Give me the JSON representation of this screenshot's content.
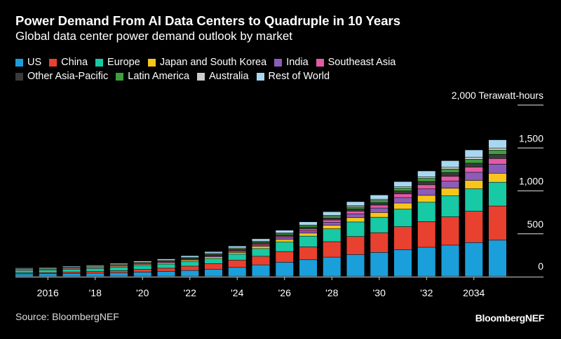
{
  "chart_data": {
    "type": "bar",
    "stacked": true,
    "title": "Power Demand From AI Data Centers to Quadruple in 10 Years",
    "subtitle": "Global data center power demand outlook by market",
    "ylabel": "",
    "yunit": "Terawatt-hours",
    "ylim": [
      0,
      2000
    ],
    "yticks": [
      0,
      500,
      1000,
      1500,
      2000
    ],
    "ytick_labels": [
      "0",
      "500",
      "1,000",
      "1,500",
      "2,000 Terawatt-hours"
    ],
    "categories": [
      2015,
      2016,
      2017,
      2018,
      2019,
      2020,
      2021,
      2022,
      2023,
      2024,
      2025,
      2026,
      2027,
      2028,
      2029,
      2030,
      2031,
      2032,
      2033,
      2034,
      2035
    ],
    "xtick_labels": [
      {
        "year": 2016,
        "label": "2016"
      },
      {
        "year": 2018,
        "label": "'18"
      },
      {
        "year": 2020,
        "label": "'20"
      },
      {
        "year": 2022,
        "label": "'22"
      },
      {
        "year": 2024,
        "label": "'24"
      },
      {
        "year": 2026,
        "label": "'26"
      },
      {
        "year": 2028,
        "label": "'28"
      },
      {
        "year": 2030,
        "label": "'30"
      },
      {
        "year": 2032,
        "label": "'32"
      },
      {
        "year": 2034,
        "label": "2034"
      }
    ],
    "legend_placement": "top-left",
    "grid": true,
    "series": [
      {
        "name": "US",
        "color": "#1a9fdb",
        "values": [
          30,
          32,
          35,
          38,
          43,
          50,
          58,
          70,
          85,
          105,
          135,
          165,
          195,
          225,
          255,
          280,
          310,
          340,
          365,
          395,
          423
        ]
      },
      {
        "name": "China",
        "color": "#e8412f",
        "values": [
          12,
          13,
          16,
          19,
          24,
          32,
          38,
          50,
          65,
          85,
          100,
          125,
          150,
          180,
          210,
          230,
          270,
          300,
          330,
          365,
          398
        ]
      },
      {
        "name": "Europe",
        "color": "#17c9a5",
        "values": [
          28,
          30,
          33,
          36,
          40,
          45,
          48,
          53,
          60,
          70,
          90,
          110,
          125,
          150,
          170,
          180,
          205,
          225,
          245,
          262,
          277
        ]
      },
      {
        "name": "Japan and South Korea",
        "color": "#f7c51c",
        "values": [
          8,
          8,
          9,
          10,
          12,
          13,
          14,
          16,
          18,
          20,
          25,
          30,
          35,
          42,
          50,
          55,
          70,
          80,
          88,
          97,
          105
        ]
      },
      {
        "name": "India",
        "color": "#8c5cb8",
        "values": [
          2,
          2,
          3,
          3,
          4,
          5,
          6,
          7,
          9,
          12,
          15,
          20,
          27,
          35,
          45,
          52,
          65,
          75,
          85,
          95,
          106
        ]
      },
      {
        "name": "Southeast Asia",
        "color": "#e35aa4",
        "values": [
          2,
          2,
          3,
          3,
          4,
          5,
          6,
          7,
          9,
          11,
          13,
          17,
          21,
          26,
          31,
          34,
          42,
          48,
          54,
          60,
          65
        ]
      },
      {
        "name": "Other Asia-Pacific",
        "color": "#3a3a3a",
        "values": [
          4,
          4,
          5,
          5,
          6,
          7,
          8,
          9,
          10,
          12,
          14,
          17,
          20,
          23,
          27,
          29,
          35,
          39,
          43,
          46,
          49
        ]
      },
      {
        "name": "Latin America",
        "color": "#3f9d40",
        "values": [
          3,
          3,
          4,
          4,
          5,
          6,
          7,
          8,
          9,
          11,
          13,
          15,
          18,
          21,
          25,
          27,
          33,
          37,
          42,
          46,
          49
        ]
      },
      {
        "name": "Australia",
        "color": "#cccccc",
        "values": [
          2,
          2,
          2,
          3,
          3,
          3,
          4,
          4,
          5,
          6,
          7,
          8,
          9,
          11,
          12,
          13,
          16,
          18,
          20,
          22,
          24
        ]
      },
      {
        "name": "Rest of World",
        "color": "#a8d8f0",
        "values": [
          9,
          9,
          10,
          11,
          12,
          14,
          16,
          18,
          20,
          23,
          27,
          32,
          37,
          42,
          47,
          50,
          60,
          68,
          78,
          87,
          97
        ]
      }
    ]
  },
  "footer": {
    "source": "Source: BloombergNEF",
    "brand": "BloombergNEF"
  }
}
